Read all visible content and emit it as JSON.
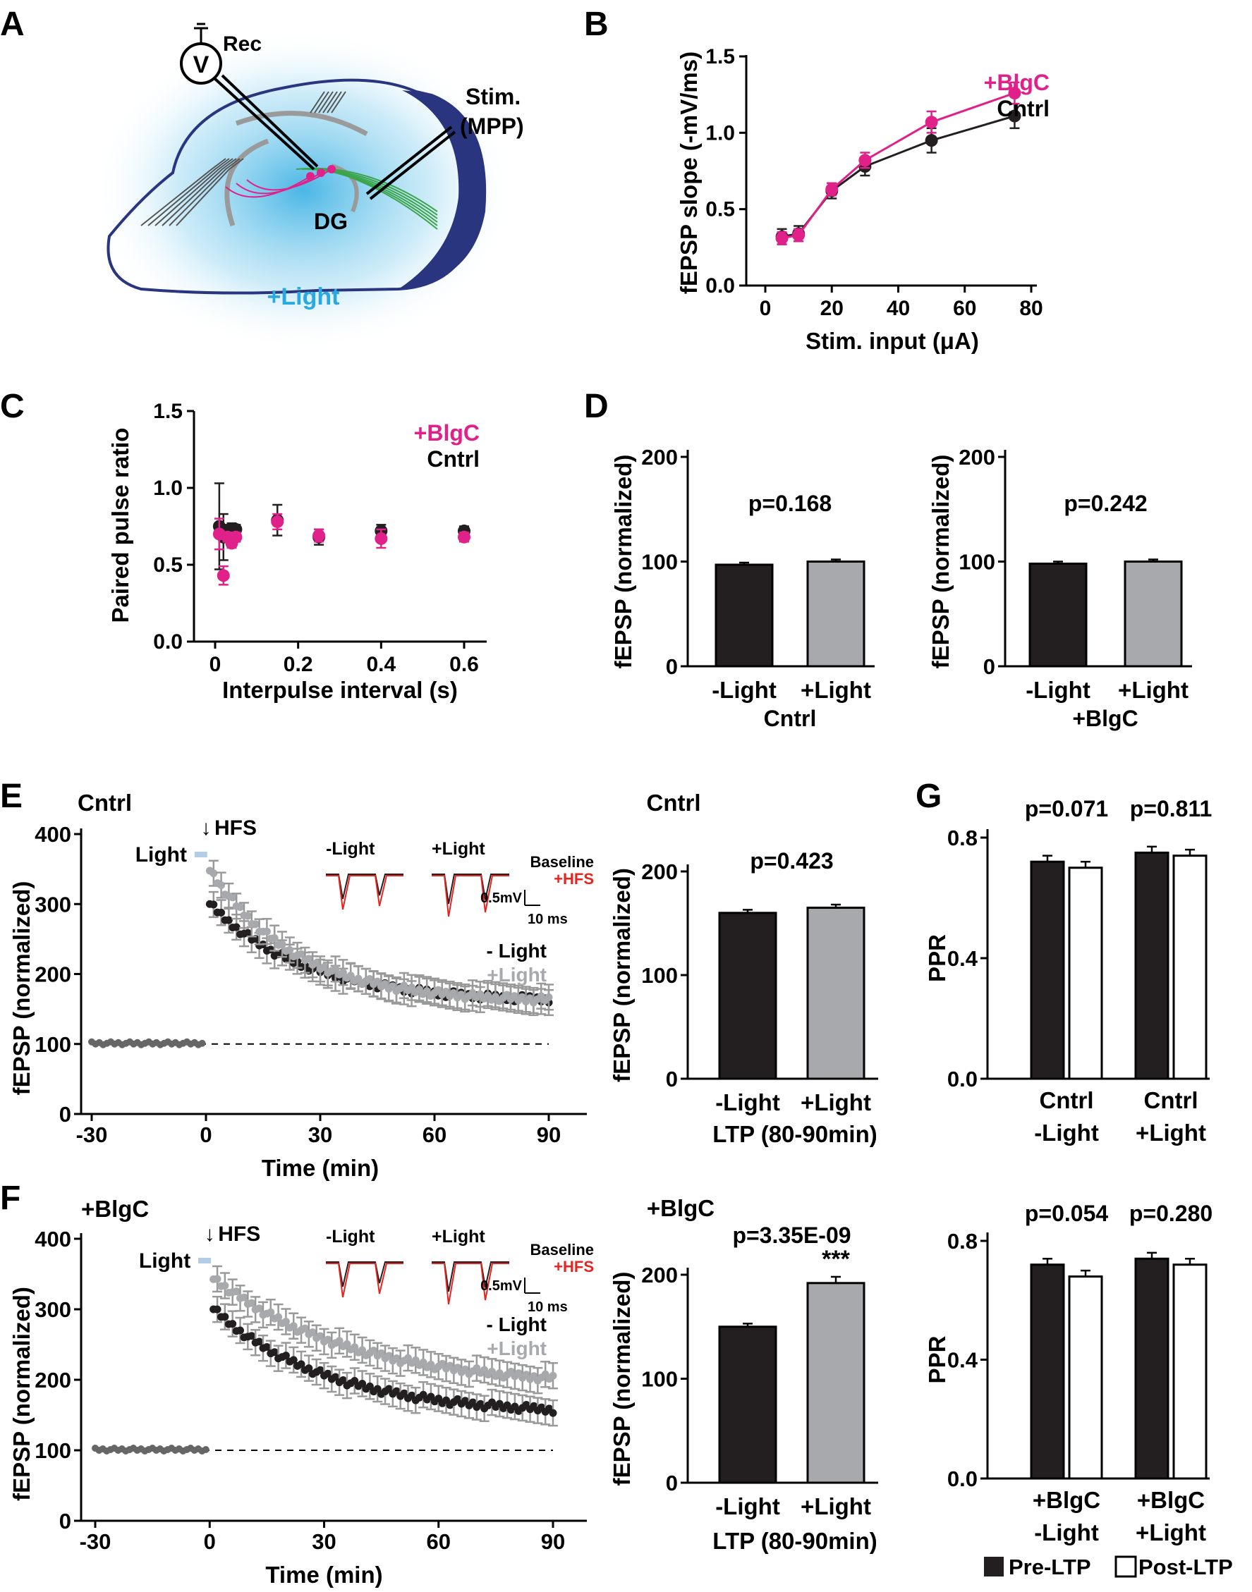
{
  "colors": {
    "black": "#231f20",
    "gray": "#a7a9ac",
    "magenta": "#e0218a",
    "red": "#e8231f",
    "blue_light": "#29a9e0",
    "white": "#ffffff"
  },
  "panels": {
    "A": "A",
    "B": "B",
    "C": "C",
    "D": "D",
    "E": "E",
    "F": "F",
    "G": "G"
  },
  "schematic": {
    "rec": "Rec",
    "voltmeter": "V",
    "stim": "Stim.",
    "mpp": "(MPP)",
    "dg": "DG",
    "light": "+Light"
  },
  "chart_data": [
    {
      "id": "B",
      "type": "line",
      "xlabel": "Stim. input (μA)",
      "ylabel": "fEPSP slope (-mV/ms)",
      "xlim": [
        0,
        80
      ],
      "ylim": [
        0,
        1.5
      ],
      "xticks": [
        "0",
        "20",
        "40",
        "60",
        "80"
      ],
      "yticks": [
        "0.0",
        "0.5",
        "1.0",
        "1.5"
      ],
      "legend": [
        "+BlgC",
        "Cntrl"
      ],
      "series": [
        {
          "name": "Cntrl",
          "x": [
            5,
            10,
            20,
            30,
            50,
            75
          ],
          "y": [
            0.32,
            0.34,
            0.62,
            0.78,
            0.95,
            1.11
          ],
          "err": [
            0.05,
            0.05,
            0.05,
            0.06,
            0.08,
            0.08
          ]
        },
        {
          "name": "+BlgC",
          "x": [
            5,
            10,
            20,
            30,
            50,
            75
          ],
          "y": [
            0.31,
            0.33,
            0.63,
            0.82,
            1.07,
            1.26
          ],
          "err": [
            0.04,
            0.04,
            0.04,
            0.05,
            0.07,
            0.07
          ]
        }
      ]
    },
    {
      "id": "C",
      "type": "scatter",
      "xlabel": "Interpulse interval (s)",
      "ylabel": "Paired pulse ratio",
      "xlim": [
        0,
        0.65
      ],
      "ylim": [
        0,
        1.5
      ],
      "xticks": [
        "0",
        "0.2",
        "0.4",
        "0.6"
      ],
      "yticks": [
        "0.0",
        "0.5",
        "1.0",
        "1.5"
      ],
      "legend": [
        "+BlgC",
        "Cntrl"
      ],
      "series": [
        {
          "name": "Cntrl",
          "x": [
            0.01,
            0.02,
            0.03,
            0.04,
            0.05,
            0.15,
            0.25,
            0.4,
            0.6
          ],
          "y": [
            0.75,
            0.68,
            0.72,
            0.73,
            0.73,
            0.79,
            0.68,
            0.72,
            0.72
          ],
          "err": [
            0.28,
            0.15,
            0.04,
            0.04,
            0.03,
            0.1,
            0.05,
            0.04,
            0.03
          ]
        },
        {
          "name": "+BlgC",
          "x": [
            0.01,
            0.02,
            0.03,
            0.04,
            0.05,
            0.15,
            0.25,
            0.4,
            0.6
          ],
          "y": [
            0.7,
            0.43,
            0.68,
            0.64,
            0.68,
            0.78,
            0.69,
            0.67,
            0.68
          ],
          "err": [
            0.1,
            0.06,
            0.03,
            0.03,
            0.03,
            0.05,
            0.04,
            0.06,
            0.03
          ]
        }
      ]
    },
    {
      "id": "D1",
      "type": "bar",
      "categories": [
        "-Light",
        "+Light"
      ],
      "values": [
        97,
        100
      ],
      "err": [
        2,
        2
      ],
      "group": "Cntrl",
      "pvalue": "p=0.168",
      "ylabel": "fEPSP (normalized)",
      "ylim": [
        0,
        200
      ],
      "yticks": [
        "0",
        "100",
        "200"
      ]
    },
    {
      "id": "D2",
      "type": "bar",
      "categories": [
        "-Light",
        "+Light"
      ],
      "values": [
        98,
        100
      ],
      "err": [
        2,
        2
      ],
      "group": "+BlgC",
      "pvalue": "p=0.242",
      "ylabel": "fEPSP (normalized)",
      "ylim": [
        0,
        200
      ],
      "yticks": [
        "0",
        "100",
        "200"
      ]
    },
    {
      "id": "E",
      "type": "scatter",
      "title": "Cntrl",
      "xlabel": "Time (min)",
      "ylabel": "fEPSP (normalized)",
      "xlim": [
        -30,
        90
      ],
      "ylim": [
        0,
        400
      ],
      "xticks": [
        "-30",
        "0",
        "30",
        "60",
        "90"
      ],
      "yticks": [
        "0",
        "100",
        "200",
        "300",
        "400"
      ],
      "legend": [
        "- Light",
        "+Light"
      ],
      "annotation": "HFS",
      "light_label": "Light",
      "series": [
        {
          "name": "- Light",
          "decay": [
            300,
            160,
            25
          ]
        },
        {
          "name": "+Light",
          "decay": [
            350,
            160,
            22
          ]
        }
      ]
    },
    {
      "id": "E_bar",
      "type": "bar",
      "title": "Cntrl",
      "categories": [
        "-Light",
        "+Light"
      ],
      "values": [
        160,
        165
      ],
      "err": [
        3,
        3
      ],
      "pvalue": "p=0.423",
      "xlabel": "LTP (80-90min)",
      "ylabel": "fEPSP (normalized)",
      "ylim": [
        0,
        200
      ],
      "yticks": [
        "0",
        "100",
        "200"
      ]
    },
    {
      "id": "F",
      "type": "scatter",
      "title": "+BlgC",
      "xlabel": "Time (min)",
      "ylabel": "fEPSP (normalized)",
      "xlim": [
        -30,
        90
      ],
      "ylim": [
        0,
        400
      ],
      "xticks": [
        "-30",
        "0",
        "30",
        "60",
        "90"
      ],
      "yticks": [
        "0",
        "100",
        "200",
        "300",
        "400"
      ],
      "legend": [
        "- Light",
        "+Light"
      ],
      "annotation": "HFS",
      "light_label": "Light",
      "series": [
        {
          "name": "- Light",
          "decay": [
            300,
            150,
            30
          ]
        },
        {
          "name": "+Light",
          "decay": [
            345,
            190,
            35
          ]
        }
      ]
    },
    {
      "id": "F_bar",
      "type": "bar",
      "title": "+BlgC",
      "categories": [
        "-Light",
        "+Light"
      ],
      "values": [
        150,
        192
      ],
      "err": [
        3,
        6
      ],
      "pvalue": "p=3.35E-09",
      "stars": "***",
      "xlabel": "LTP (80-90min)",
      "ylabel": "fEPSP (normalized)",
      "ylim": [
        0,
        200
      ],
      "yticks": [
        "0",
        "100",
        "200"
      ]
    },
    {
      "id": "G1",
      "type": "bar",
      "ylabel": "PPR",
      "ylim": [
        0,
        0.8
      ],
      "yticks": [
        "0.0",
        "0.4",
        "0.8"
      ],
      "groups": [
        {
          "label1": "Cntrl",
          "label2": "-Light",
          "pre": 0.72,
          "post": 0.7,
          "pvalue": "p=0.071"
        },
        {
          "label1": "Cntrl",
          "label2": "+Light",
          "pre": 0.75,
          "post": 0.74,
          "pvalue": "p=0.811"
        }
      ]
    },
    {
      "id": "G2",
      "type": "bar",
      "ylabel": "PPR",
      "ylim": [
        0,
        0.8
      ],
      "yticks": [
        "0.0",
        "0.4",
        "0.8"
      ],
      "groups": [
        {
          "label1": "+BlgC",
          "label2": "-Light",
          "pre": 0.72,
          "post": 0.68,
          "pvalue": "p=0.054"
        },
        {
          "label1": "+BlgC",
          "label2": "+Light",
          "pre": 0.74,
          "post": 0.72,
          "pvalue": "p=0.280"
        }
      ],
      "legend": [
        "Pre-LTP",
        "Post-LTP"
      ]
    }
  ],
  "insets": {
    "minus_light": "-Light",
    "plus_light": "+Light",
    "baseline": "Baseline",
    "hfs": "+HFS",
    "scale_v": "0.5mV",
    "scale_t": "10 ms"
  }
}
